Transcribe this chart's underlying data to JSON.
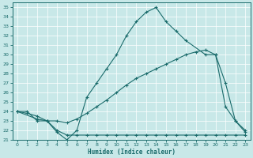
{
  "xlabel": "Humidex (Indice chaleur)",
  "bg_color": "#c8e8e8",
  "grid_color": "#ffffff",
  "line_color": "#1a6b6b",
  "xlim": [
    -0.5,
    23.5
  ],
  "ylim": [
    21,
    35.5
  ],
  "xticks": [
    0,
    1,
    2,
    3,
    4,
    5,
    6,
    7,
    8,
    9,
    10,
    11,
    12,
    13,
    14,
    15,
    16,
    17,
    18,
    19,
    20,
    21,
    22,
    23
  ],
  "yticks": [
    21,
    22,
    23,
    24,
    25,
    26,
    27,
    28,
    29,
    30,
    31,
    32,
    33,
    34,
    35
  ],
  "line_flat_x": [
    0,
    1,
    2,
    3,
    4,
    5,
    6,
    7,
    8,
    9,
    10,
    11,
    12,
    13,
    14,
    15,
    16,
    17,
    18,
    19,
    20,
    21,
    22,
    23
  ],
  "line_flat_y": [
    24,
    24,
    23,
    23,
    22,
    21.5,
    21.5,
    21.5,
    21.5,
    21.5,
    21.5,
    21.5,
    21.5,
    21.5,
    21.5,
    21.5,
    21.5,
    21.5,
    21.5,
    21.5,
    21.5,
    21.5,
    21.5,
    21.5
  ],
  "line_diag_x": [
    0,
    1,
    2,
    3,
    4,
    5,
    6,
    7,
    8,
    9,
    10,
    11,
    12,
    13,
    14,
    15,
    16,
    17,
    18,
    19,
    20,
    21,
    22,
    23
  ],
  "line_diag_y": [
    24,
    23.8,
    23.5,
    23,
    23,
    22.8,
    23.2,
    23.8,
    24.5,
    25.2,
    26,
    26.8,
    27.5,
    28,
    28.5,
    29,
    29.5,
    30,
    30.3,
    30.5,
    30.0,
    27.0,
    23,
    21.8
  ],
  "line_peak_x": [
    0,
    2,
    3,
    4,
    5,
    6,
    7,
    8,
    9,
    10,
    11,
    12,
    13,
    14,
    15,
    16,
    17,
    19,
    20,
    21,
    22,
    23
  ],
  "line_peak_y": [
    24,
    23.2,
    23,
    21.8,
    21,
    22,
    25.5,
    27,
    28.5,
    30,
    32,
    33.5,
    34.5,
    35,
    33.5,
    32.5,
    31.5,
    30,
    30,
    24.5,
    23,
    22
  ]
}
